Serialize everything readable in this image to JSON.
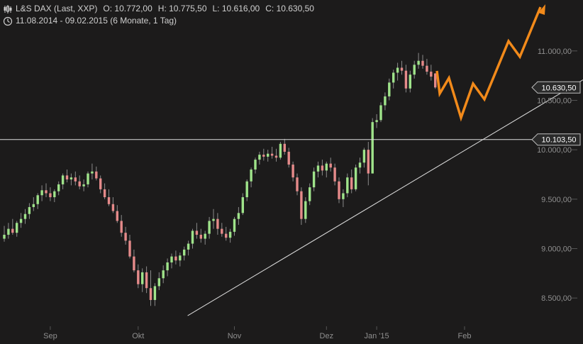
{
  "header": {
    "instrument": "L&S DAX (Last, XXP)",
    "open": "O: 10.772,00",
    "high": "H: 10.775,50",
    "low": "L: 10.616,00",
    "close": "C: 10.630,50",
    "period": "11.08.2014 - 09.02.2015 (6 Monate, 1 Tag)",
    "icons": [
      "candlestick-icon",
      "clock-icon"
    ]
  },
  "chart_data": {
    "type": "candlestick",
    "x_ticks": [
      "Sep",
      "Okt",
      "Nov",
      "Dez",
      "Jan '15",
      "Feb"
    ],
    "y_ticks": [
      "11.000,00",
      "10.500,00",
      "10.000,00",
      "9.500,00",
      "9.000,00",
      "8.500,00"
    ],
    "ylim": [
      8250,
      11300
    ],
    "y_tick_values": [
      11000,
      10500,
      10000,
      9500,
      9000,
      8500
    ],
    "x_tick_index": [
      11,
      32,
      55,
      77,
      89,
      110
    ],
    "last_price_label": "10.630,50",
    "last_price": 10630.5,
    "resistance_label": "10.103,50",
    "resistance": 10103.5,
    "trendline": {
      "from": {
        "index": 44,
        "value": 8350
      },
      "to": {
        "index": 150,
        "value": 11000
      }
    },
    "colors": {
      "up": "#9fe38a",
      "down": "#e58a8a",
      "projection": "#f28a1a",
      "line": "#dddddd",
      "background": "#1c1b1b"
    },
    "candles": [
      [
        9100,
        9230,
        9070,
        9140
      ],
      [
        9140,
        9260,
        9100,
        9200
      ],
      [
        9200,
        9300,
        9140,
        9160
      ],
      [
        9160,
        9280,
        9120,
        9260
      ],
      [
        9260,
        9360,
        9210,
        9300
      ],
      [
        9300,
        9400,
        9250,
        9350
      ],
      [
        9350,
        9460,
        9300,
        9420
      ],
      [
        9420,
        9520,
        9380,
        9450
      ],
      [
        9450,
        9560,
        9400,
        9540
      ],
      [
        9540,
        9640,
        9480,
        9590
      ],
      [
        9590,
        9660,
        9520,
        9560
      ],
      [
        9560,
        9620,
        9480,
        9520
      ],
      [
        9520,
        9600,
        9470,
        9580
      ],
      [
        9580,
        9680,
        9540,
        9650
      ],
      [
        9650,
        9760,
        9600,
        9740
      ],
      [
        9740,
        9800,
        9670,
        9700
      ],
      [
        9700,
        9760,
        9640,
        9720
      ],
      [
        9720,
        9780,
        9640,
        9680
      ],
      [
        9680,
        9740,
        9600,
        9630
      ],
      [
        9630,
        9700,
        9580,
        9650
      ],
      [
        9650,
        9780,
        9620,
        9760
      ],
      [
        9760,
        9860,
        9700,
        9780
      ],
      [
        9780,
        9830,
        9690,
        9710
      ],
      [
        9710,
        9740,
        9560,
        9600
      ],
      [
        9600,
        9660,
        9500,
        9520
      ],
      [
        9520,
        9600,
        9430,
        9450
      ],
      [
        9450,
        9520,
        9360,
        9380
      ],
      [
        9380,
        9440,
        9260,
        9280
      ],
      [
        9280,
        9340,
        9120,
        9160
      ],
      [
        9160,
        9220,
        9040,
        9080
      ],
      [
        9080,
        9140,
        8900,
        8920
      ],
      [
        8920,
        8990,
        8760,
        8780
      ],
      [
        8780,
        8840,
        8600,
        8640
      ],
      [
        8640,
        8800,
        8560,
        8760
      ],
      [
        8760,
        8820,
        8550,
        8600
      ],
      [
        8600,
        8780,
        8420,
        8480
      ],
      [
        8480,
        8650,
        8420,
        8620
      ],
      [
        8620,
        8760,
        8580,
        8700
      ],
      [
        8700,
        8830,
        8650,
        8780
      ],
      [
        8780,
        8900,
        8720,
        8860
      ],
      [
        8860,
        8950,
        8800,
        8920
      ],
      [
        8920,
        8980,
        8840,
        8880
      ],
      [
        8880,
        8960,
        8820,
        8930
      ],
      [
        8930,
        9020,
        8880,
        8990
      ],
      [
        8990,
        9080,
        8930,
        9050
      ],
      [
        9050,
        9200,
        9000,
        9180
      ],
      [
        9180,
        9260,
        9100,
        9140
      ],
      [
        9140,
        9200,
        9060,
        9100
      ],
      [
        9100,
        9180,
        9040,
        9150
      ],
      [
        9150,
        9320,
        9100,
        9280
      ],
      [
        9280,
        9400,
        9200,
        9300
      ],
      [
        9300,
        9360,
        9140,
        9200
      ],
      [
        9200,
        9260,
        9120,
        9150
      ],
      [
        9150,
        9220,
        9080,
        9110
      ],
      [
        9110,
        9200,
        9060,
        9170
      ],
      [
        9170,
        9320,
        9130,
        9300
      ],
      [
        9300,
        9420,
        9240,
        9360
      ],
      [
        9360,
        9560,
        9340,
        9520
      ],
      [
        9520,
        9700,
        9480,
        9680
      ],
      [
        9680,
        9820,
        9620,
        9800
      ],
      [
        9800,
        9920,
        9760,
        9900
      ],
      [
        9900,
        9980,
        9850,
        9950
      ],
      [
        9950,
        10010,
        9890,
        9930
      ],
      [
        9930,
        10000,
        9880,
        9960
      ],
      [
        9960,
        10030,
        9910,
        9940
      ],
      [
        9940,
        10010,
        9880,
        9920
      ],
      [
        9920,
        10080,
        9900,
        10060
      ],
      [
        10060,
        10110,
        9950,
        9980
      ],
      [
        9980,
        10020,
        9820,
        9850
      ],
      [
        9850,
        9880,
        9680,
        9720
      ],
      [
        9720,
        9760,
        9540,
        9580
      ],
      [
        9580,
        9620,
        9240,
        9300
      ],
      [
        9300,
        9520,
        9260,
        9480
      ],
      [
        9480,
        9660,
        9440,
        9620
      ],
      [
        9620,
        9820,
        9580,
        9780
      ],
      [
        9780,
        9880,
        9720,
        9840
      ],
      [
        9840,
        9900,
        9740,
        9790
      ],
      [
        9790,
        9880,
        9720,
        9860
      ],
      [
        9860,
        9920,
        9780,
        9820
      ],
      [
        9820,
        9860,
        9640,
        9680
      ],
      [
        9680,
        9720,
        9460,
        9500
      ],
      [
        9500,
        9600,
        9420,
        9560
      ],
      [
        9560,
        9760,
        9520,
        9720
      ],
      [
        9720,
        9800,
        9560,
        9600
      ],
      [
        9600,
        9850,
        9580,
        9820
      ],
      [
        9820,
        9920,
        9760,
        9870
      ],
      [
        9870,
        10020,
        9820,
        10000
      ],
      [
        10000,
        10080,
        9640,
        9760
      ],
      [
        9760,
        10320,
        9760,
        10280
      ],
      [
        10280,
        10360,
        10220,
        10300
      ],
      [
        10300,
        10480,
        10280,
        10450
      ],
      [
        10450,
        10580,
        10400,
        10540
      ],
      [
        10540,
        10720,
        10500,
        10680
      ],
      [
        10680,
        10810,
        10620,
        10780
      ],
      [
        10780,
        10880,
        10700,
        10830
      ],
      [
        10830,
        10900,
        10760,
        10800
      ],
      [
        10800,
        10860,
        10580,
        10620
      ],
      [
        10620,
        10800,
        10580,
        10760
      ],
      [
        10760,
        10900,
        10720,
        10860
      ],
      [
        10860,
        10980,
        10820,
        10900
      ],
      [
        10900,
        10960,
        10820,
        10850
      ],
      [
        10850,
        10920,
        10760,
        10790
      ],
      [
        10790,
        10860,
        10700,
        10740
      ],
      [
        10772,
        10775.5,
        10616,
        10630.5
      ]
    ]
  },
  "projection": [
    [
      616,
      100
    ],
    [
      620,
      132
    ],
    [
      633,
      110
    ],
    [
      650,
      166
    ],
    [
      667,
      118
    ],
    [
      683,
      140
    ],
    [
      717,
      58
    ],
    [
      733,
      80
    ],
    [
      762,
      10
    ]
  ]
}
